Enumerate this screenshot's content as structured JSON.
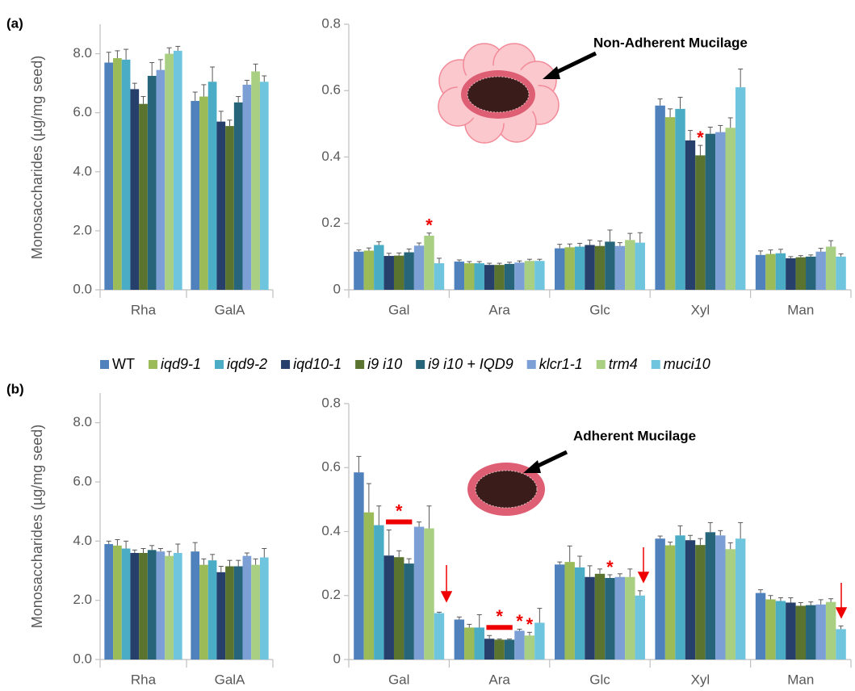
{
  "chart_data": [
    {
      "type": "bar",
      "panel_label": "(a)",
      "y_label": "Monosaccharides (µg/mg seed)",
      "categories": [
        "Rha",
        "GalA"
      ],
      "ylim": [
        0,
        9
      ],
      "yticks": [
        {
          "value": 0,
          "label": "0.0"
        },
        {
          "value": 2,
          "label": "2.0"
        },
        {
          "value": 4,
          "label": "4.0"
        },
        {
          "value": 6,
          "label": "6.0"
        },
        {
          "value": 8,
          "label": "8.0"
        }
      ],
      "series": [
        {
          "name": "WT",
          "color": "#4f81bd",
          "values": [
            7.7,
            6.4
          ],
          "errors": [
            0.35,
            0.3
          ]
        },
        {
          "name": "iqd9-1",
          "color": "#9bbb59",
          "values": [
            7.85,
            6.55
          ],
          "errors": [
            0.25,
            0.4
          ]
        },
        {
          "name": "iqd9-2",
          "color": "#4bacc6",
          "values": [
            7.8,
            7.05
          ],
          "errors": [
            0.35,
            0.5
          ]
        },
        {
          "name": "iqd10-1",
          "color": "#26406b",
          "values": [
            6.8,
            5.7
          ],
          "errors": [
            0.2,
            0.35
          ]
        },
        {
          "name": "i9 i10",
          "color": "#5a7430",
          "values": [
            6.3,
            5.55
          ],
          "errors": [
            0.25,
            0.2
          ]
        },
        {
          "name": "i9 i10 + IQD9",
          "color": "#26657a",
          "values": [
            7.25,
            6.35
          ],
          "errors": [
            0.45,
            0.2
          ]
        },
        {
          "name": "klcr1-1",
          "color": "#7c9fd6",
          "values": [
            7.45,
            6.95
          ],
          "errors": [
            0.35,
            0.15
          ]
        },
        {
          "name": "trm4",
          "color": "#a9cf82",
          "values": [
            8.0,
            7.4
          ],
          "errors": [
            0.2,
            0.25
          ]
        },
        {
          "name": "muci10",
          "color": "#6fc5de",
          "values": [
            8.1,
            7.05
          ],
          "errors": [
            0.15,
            0.2
          ]
        }
      ]
    },
    {
      "type": "bar",
      "annotation": "Non-Adherent Mucilage",
      "categories": [
        "Gal",
        "Ara",
        "Glc",
        "Xyl",
        "Man"
      ],
      "ylim": [
        0,
        0.8
      ],
      "yticks": [
        0,
        0.2,
        0.4,
        0.6,
        0.8
      ],
      "series": [
        {
          "name": "WT",
          "color": "#4f81bd",
          "values": [
            0.115,
            0.085,
            0.125,
            0.555,
            0.105
          ],
          "errors": [
            0.005,
            0.005,
            0.012,
            0.02,
            0.012
          ]
        },
        {
          "name": "iqd9-1",
          "color": "#9bbb59",
          "values": [
            0.118,
            0.08,
            0.128,
            0.52,
            0.108
          ],
          "errors": [
            0.008,
            0.005,
            0.01,
            0.025,
            0.012
          ]
        },
        {
          "name": "iqd9-2",
          "color": "#4bacc6",
          "values": [
            0.135,
            0.08,
            0.13,
            0.545,
            0.11
          ],
          "errors": [
            0.01,
            0.005,
            0.01,
            0.035,
            0.012
          ]
        },
        {
          "name": "iqd10-1",
          "color": "#26406b",
          "values": [
            0.102,
            0.075,
            0.135,
            0.45,
            0.095
          ],
          "errors": [
            0.008,
            0.005,
            0.015,
            0.03,
            0.005
          ]
        },
        {
          "name": "i9 i10",
          "color": "#5a7430",
          "values": [
            0.103,
            0.075,
            0.132,
            0.405,
            0.098
          ],
          "errors": [
            0.008,
            0.005,
            0.015,
            0.03,
            0.005
          ],
          "significance": [
            null,
            null,
            null,
            "*",
            null
          ]
        },
        {
          "name": "i9 i10 + IQD9",
          "color": "#26657a",
          "values": [
            0.113,
            0.078,
            0.145,
            0.47,
            0.1
          ],
          "errors": [
            0.01,
            0.005,
            0.035,
            0.02,
            0.005
          ]
        },
        {
          "name": "klcr1-1",
          "color": "#7c9fd6",
          "values": [
            0.133,
            0.082,
            0.132,
            0.475,
            0.115
          ],
          "errors": [
            0.008,
            0.005,
            0.01,
            0.02,
            0.01
          ]
        },
        {
          "name": "trm4",
          "color": "#a9cf82",
          "values": [
            0.163,
            0.087,
            0.15,
            0.488,
            0.13
          ],
          "errors": [
            0.008,
            0.005,
            0.02,
            0.03,
            0.018
          ],
          "significance": [
            "*",
            null,
            null,
            null,
            null
          ]
        },
        {
          "name": "muci10",
          "color": "#6fc5de",
          "values": [
            0.08,
            0.087,
            0.142,
            0.61,
            0.1
          ],
          "errors": [
            0.015,
            0.005,
            0.03,
            0.055,
            0.008
          ]
        }
      ]
    },
    {
      "type": "bar",
      "panel_label": "(b)",
      "y_label": "Monosaccharides (µg/mg seed)",
      "categories": [
        "Rha",
        "GalA"
      ],
      "ylim": [
        0,
        9
      ],
      "yticks": [
        {
          "value": 0,
          "label": "0.0"
        },
        {
          "value": 2,
          "label": "2.0"
        },
        {
          "value": 4,
          "label": "4.0"
        },
        {
          "value": 6,
          "label": "6.0"
        },
        {
          "value": 8,
          "label": "8.0"
        }
      ],
      "series": [
        {
          "name": "WT",
          "color": "#4f81bd",
          "values": [
            3.9,
            3.65
          ],
          "errors": [
            0.1,
            0.3
          ]
        },
        {
          "name": "iqd9-1",
          "color": "#9bbb59",
          "values": [
            3.85,
            3.2
          ],
          "errors": [
            0.2,
            0.2
          ]
        },
        {
          "name": "iqd9-2",
          "color": "#4bacc6",
          "values": [
            3.75,
            3.35
          ],
          "errors": [
            0.25,
            0.2
          ]
        },
        {
          "name": "iqd10-1",
          "color": "#26406b",
          "values": [
            3.6,
            2.95
          ],
          "errors": [
            0.1,
            0.2
          ]
        },
        {
          "name": "i9 i10",
          "color": "#5a7430",
          "values": [
            3.6,
            3.15
          ],
          "errors": [
            0.15,
            0.2
          ]
        },
        {
          "name": "i9 i10 + IQD9",
          "color": "#26657a",
          "values": [
            3.7,
            3.15
          ],
          "errors": [
            0.15,
            0.2
          ]
        },
        {
          "name": "klcr1-1",
          "color": "#7c9fd6",
          "values": [
            3.65,
            3.5
          ],
          "errors": [
            0.1,
            0.1
          ]
        },
        {
          "name": "trm4",
          "color": "#a9cf82",
          "values": [
            3.5,
            3.2
          ],
          "errors": [
            0.15,
            0.2
          ]
        },
        {
          "name": "muci10",
          "color": "#6fc5de",
          "values": [
            3.6,
            3.45
          ],
          "errors": [
            0.3,
            0.3
          ]
        }
      ]
    },
    {
      "type": "bar",
      "annotation": "Adherent Mucilage",
      "categories": [
        "Gal",
        "Ara",
        "Glc",
        "Xyl",
        "Man"
      ],
      "ylim": [
        0,
        0.8
      ],
      "yticks": [
        0,
        0.2,
        0.4,
        0.6,
        0.8
      ],
      "series": [
        {
          "name": "WT",
          "color": "#4f81bd",
          "values": [
            0.585,
            0.125,
            0.297,
            0.378,
            0.208
          ],
          "errors": [
            0.05,
            0.008,
            0.008,
            0.008,
            0.01
          ]
        },
        {
          "name": "iqd9-1",
          "color": "#9bbb59",
          "values": [
            0.46,
            0.1,
            0.305,
            0.357,
            0.188
          ],
          "errors": [
            0.09,
            0.01,
            0.05,
            0.01,
            0.012
          ]
        },
        {
          "name": "iqd9-2",
          "color": "#4bacc6",
          "values": [
            0.42,
            0.1,
            0.288,
            0.388,
            0.183
          ],
          "errors": [
            0.06,
            0.04,
            0.035,
            0.03,
            0.01
          ]
        },
        {
          "name": "iqd10-1",
          "color": "#26406b",
          "values": [
            0.325,
            0.065,
            0.258,
            0.373,
            0.178
          ],
          "errors": [
            0.08,
            0.01,
            0.035,
            0.015,
            0.015
          ]
        },
        {
          "name": "i9 i10",
          "color": "#5a7430",
          "values": [
            0.32,
            0.062,
            0.268,
            0.358,
            0.168
          ],
          "errors": [
            0.02,
            0.002,
            0.015,
            0.02,
            0.01
          ],
          "significance": [
            "*",
            "*",
            null,
            null,
            null
          ]
        },
        {
          "name": "i9 i10 + IQD9",
          "color": "#26657a",
          "values": [
            0.3,
            0.062,
            0.255,
            0.398,
            0.17
          ],
          "errors": [
            0.015,
            0.002,
            0.01,
            0.03,
            0.01
          ],
          "significance": [
            null,
            null,
            "*",
            null,
            null
          ]
        },
        {
          "name": "klcr1-1",
          "color": "#7c9fd6",
          "values": [
            0.415,
            0.09,
            0.258,
            0.388,
            0.172
          ],
          "errors": [
            0.015,
            0.005,
            0.01,
            0.015,
            0.015
          ],
          "significance": [
            null,
            "*",
            null,
            null,
            null
          ]
        },
        {
          "name": "trm4",
          "color": "#a9cf82",
          "values": [
            0.41,
            0.075,
            0.258,
            0.345,
            0.18
          ],
          "errors": [
            0.07,
            0.01,
            0.025,
            0.02,
            0.01
          ],
          "significance": [
            null,
            "*",
            null,
            null,
            null
          ]
        },
        {
          "name": "muci10",
          "color": "#6fc5de",
          "values": [
            0.145,
            0.115,
            0.2,
            0.378,
            0.095
          ],
          "errors": [
            0.003,
            0.045,
            0.015,
            0.05,
            0.01
          ]
        }
      ]
    }
  ]
}
